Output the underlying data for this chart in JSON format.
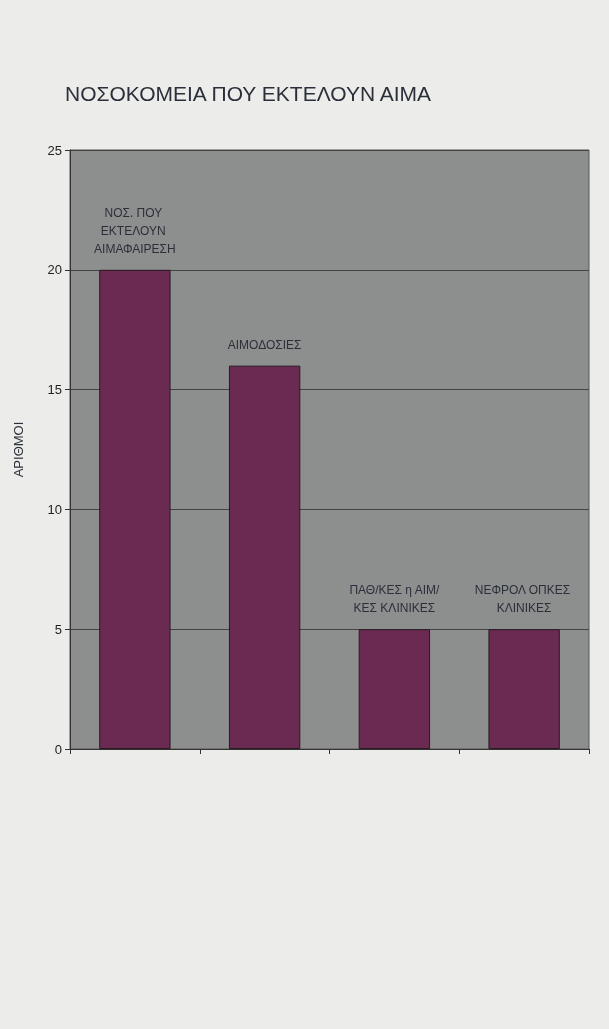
{
  "chart_data": {
    "type": "bar",
    "title": "ΝΟΣΟΚΟΜΕΙΑ ΠΟΥ ΕΚΤΕΛΟΥΝ ΑΙΜΑ",
    "ylabel": "ΑΡΙΘΜΟΙ",
    "categories": [
      "ΝΟΣ. ΠΟΥ ΕΚΤΕΛΟΥΝ ΑΙΜΑΦΑΙΡΕΣΗ",
      "ΑΙΜΟΔΟΣΙΕΣ",
      "ΠΑΘ/ΚΕΣ η ΑΙΜ/ΚΕΣ ΚΛΙΝΙΚΕΣ",
      "ΝΕΦΡΟΛ ΟΠΚΕΣ ΚΛΙΝΙΚΕΣ"
    ],
    "values": [
      20,
      16,
      5,
      5
    ],
    "color": "#6b2a52",
    "ylim": [
      0,
      25
    ],
    "yticks": [
      0,
      5,
      10,
      15,
      20,
      25
    ],
    "grid": "y"
  }
}
